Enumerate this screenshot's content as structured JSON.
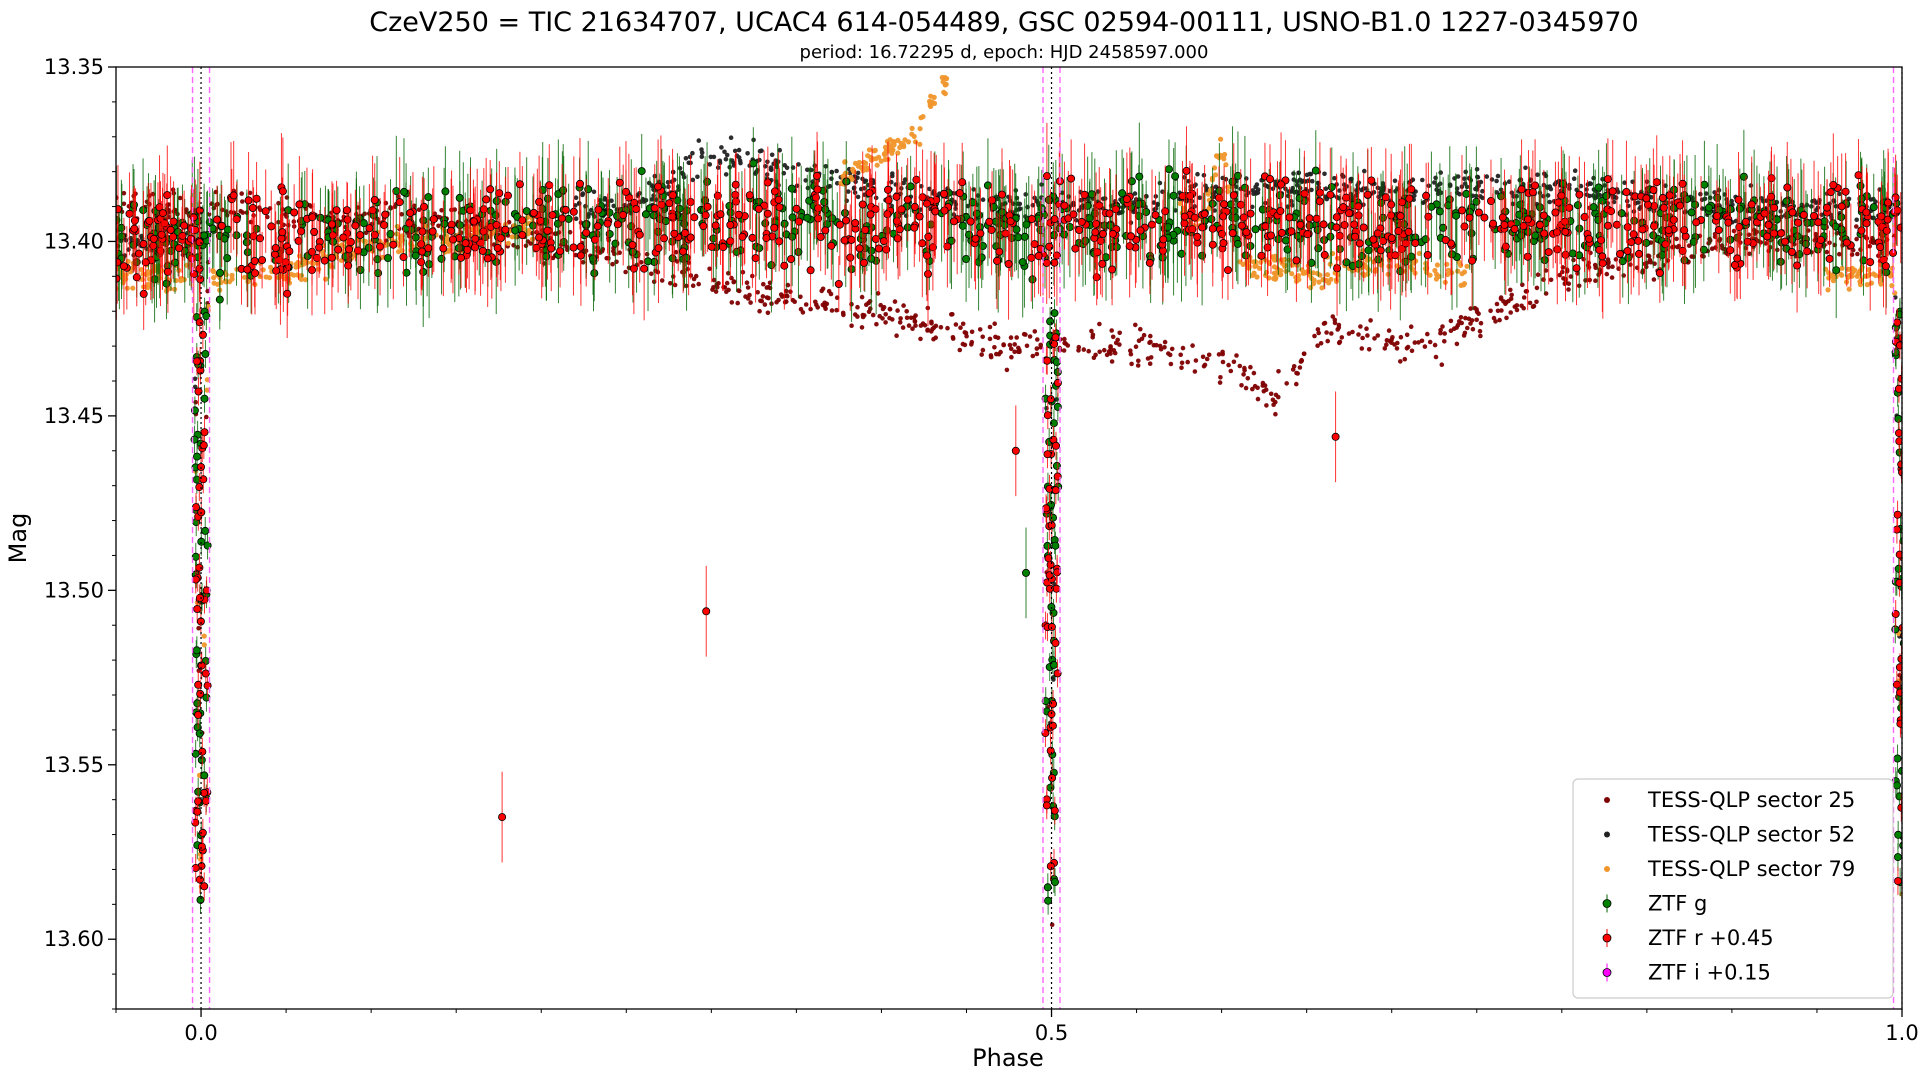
{
  "chart_data": {
    "type": "scatter",
    "title": "CzeV250 = TIC 21634707, UCAC4 614-054489, GSC 02594-00111, USNO-B1.0 1227-0345970",
    "subtitle": "period: 16.72295 d, epoch: HJD 2458597.000",
    "xlabel": "Phase",
    "ylabel": "Mag",
    "xlim": [
      -0.05,
      1.0
    ],
    "ylim": [
      13.62,
      13.35
    ],
    "y_inverted": true,
    "x_ticks": [
      0.0,
      0.5,
      1.0
    ],
    "x_tick_labels": [
      "0.0",
      "0.5",
      "1.0"
    ],
    "y_ticks": [
      13.35,
      13.4,
      13.45,
      13.5,
      13.55,
      13.6
    ],
    "y_tick_labels": [
      "13.35",
      "13.40",
      "13.45",
      "13.50",
      "13.55",
      "13.60"
    ],
    "grid": false,
    "legend_position": "lower-right",
    "eclipse_lines": {
      "black_dotted": [
        0.0,
        0.5,
        1.0
      ],
      "magenta_dashed": [
        -0.005,
        0.005,
        0.495,
        0.505,
        0.995
      ]
    },
    "series": [
      {
        "name": "TESS-QLP sector 25",
        "color": "#7f0000",
        "marker": "dot",
        "profile": [
          [
            -0.05,
            13.39
          ],
          [
            0.0,
            13.6
          ],
          [
            0.15,
            13.395
          ],
          [
            0.25,
            13.405
          ],
          [
            0.33,
            13.415
          ],
          [
            0.4,
            13.42
          ],
          [
            0.47,
            13.43
          ],
          [
            0.5,
            13.58
          ],
          [
            0.55,
            13.43
          ],
          [
            0.6,
            13.435
          ],
          [
            0.63,
            13.445
          ],
          [
            0.66,
            13.425
          ],
          [
            0.72,
            13.43
          ],
          [
            0.8,
            13.41
          ],
          [
            0.9,
            13.4
          ],
          [
            1.0,
            13.4
          ]
        ]
      },
      {
        "name": "TESS-QLP sector 52",
        "color": "#222222",
        "marker": "dot",
        "profile": [
          [
            -0.05,
            13.4
          ],
          [
            0.0,
            13.6
          ],
          [
            0.25,
            13.39
          ],
          [
            0.3,
            13.375
          ],
          [
            0.35,
            13.38
          ],
          [
            0.4,
            13.385
          ],
          [
            0.45,
            13.39
          ],
          [
            0.5,
            13.58
          ],
          [
            0.55,
            13.39
          ],
          [
            0.6,
            13.385
          ],
          [
            0.7,
            13.385
          ],
          [
            0.8,
            13.385
          ],
          [
            0.9,
            13.39
          ],
          [
            1.0,
            13.4
          ]
        ]
      },
      {
        "name": "TESS-QLP sector 79",
        "color": "#f0962c",
        "marker": "dot",
        "profile": [
          [
            -0.05,
            13.41
          ],
          [
            0.0,
            13.59
          ],
          [
            0.05,
            13.41
          ],
          [
            0.1,
            13.4
          ],
          [
            0.15,
            13.4
          ],
          [
            0.195,
            13.395
          ],
          [
            0.38,
            13.38
          ],
          [
            0.42,
            13.37
          ],
          [
            0.435,
            13.355
          ],
          [
            0.59,
            13.395
          ],
          [
            0.6,
            13.37
          ],
          [
            0.61,
            13.405
          ],
          [
            0.65,
            13.41
          ],
          [
            0.7,
            13.405
          ],
          [
            0.745,
            13.41
          ],
          [
            0.96,
            13.41
          ],
          [
            1.0,
            13.415
          ]
        ]
      },
      {
        "name": "ZTF g",
        "color": "#006400",
        "marker": "errorbar-circle",
        "profile": [
          [
            -0.05,
            13.4
          ],
          [
            0.0,
            13.6
          ],
          [
            0.25,
            13.395
          ],
          [
            0.5,
            13.58
          ],
          [
            0.75,
            13.395
          ],
          [
            1.0,
            13.4
          ]
        ],
        "outliers": [
          [
            0.485,
            13.495
          ]
        ]
      },
      {
        "name": "ZTF r +0.45",
        "color": "#ff0000",
        "marker": "errorbar-circle",
        "profile": [
          [
            -0.05,
            13.4
          ],
          [
            0.0,
            13.58
          ],
          [
            0.25,
            13.395
          ],
          [
            0.5,
            13.58
          ],
          [
            0.75,
            13.395
          ],
          [
            1.0,
            13.4
          ]
        ],
        "outliers": [
          [
            0.177,
            13.565
          ],
          [
            0.297,
            13.506
          ],
          [
            0.479,
            13.46
          ],
          [
            0.667,
            13.456
          ]
        ]
      },
      {
        "name": "ZTF i +0.15",
        "color": "#ff00ff",
        "marker": "errorbar-circle",
        "profile": []
      }
    ]
  }
}
